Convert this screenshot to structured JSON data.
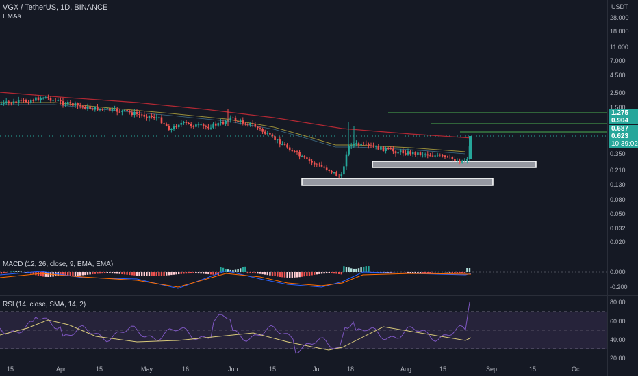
{
  "header": {
    "symbol": "VGX / TetherUS, 1D, BINANCE",
    "indicator": "EMAs",
    "currency": "USDT"
  },
  "price_axis_labels": [
    "28.000",
    "18.000",
    "11.000",
    "7.000",
    "4.500",
    "2.500",
    "1.500",
    "0.350",
    "0.210",
    "0.130",
    "0.080",
    "0.050",
    "0.032",
    "0.020"
  ],
  "price_tags": [
    {
      "value": "1.275",
      "color": "#26a69a"
    },
    {
      "value": "0.904",
      "color": "#26a69a"
    },
    {
      "value": "0.687",
      "color": "#26a69a"
    },
    {
      "value": "0.623",
      "countdown": "10:39:02",
      "color": "#26a69a"
    }
  ],
  "x_axis_labels": [
    "15",
    "Apr",
    "15",
    "May",
    "16",
    "Jun",
    "15",
    "Jul",
    "18",
    "Aug",
    "15",
    "Sep",
    "15",
    "Oct"
  ],
  "macd": {
    "title": "MACD (12, 26, close, 9, EMA, EMA)",
    "axis_labels": [
      "0.000",
      "-0.200"
    ]
  },
  "rsi": {
    "title": "RSI (14, close, SMA, 14, 2)",
    "axis_labels": [
      "80.00",
      "60.00",
      "40.00",
      "20.00"
    ]
  },
  "colors": {
    "background": "#151924",
    "up": "#26a69a",
    "down": "#ef5350",
    "ema_short": "#9a8f3a",
    "ema_long": "#b22833",
    "rsi_line": "#7e57c2",
    "rsi_band": "#2a2540",
    "level_line": "#4caf50"
  },
  "chart_data": [
    {
      "type": "candlestick",
      "title": "VGX / TetherUS, 1D, BINANCE",
      "y_scale": "log",
      "ylim": [
        0.016,
        40
      ],
      "x": [
        "Mar 15",
        "Apr 1",
        "Apr 15",
        "May 1",
        "May 16",
        "Jun 1",
        "Jun 15",
        "Jul 1",
        "Jul 18",
        "Aug 1",
        "Aug 15",
        "Aug 25"
      ],
      "close": [
        1.8,
        2.1,
        1.5,
        1.1,
        0.8,
        0.95,
        0.5,
        0.22,
        0.45,
        0.38,
        0.33,
        0.623
      ],
      "series": [
        {
          "name": "EMA short",
          "values": [
            1.75,
            1.9,
            1.7,
            1.45,
            1.15,
            1.0,
            0.75,
            0.48,
            0.44,
            0.4,
            0.38,
            0.39
          ]
        },
        {
          "name": "EMA long",
          "values": [
            2.2,
            2.1,
            1.95,
            1.75,
            1.55,
            1.35,
            1.1,
            0.85,
            0.7,
            0.6,
            0.54,
            0.52
          ]
        }
      ],
      "levels": [
        1.275,
        0.904,
        0.687
      ],
      "zones": [
        [
          0.25,
          0.27
        ],
        [
          0.145,
          0.16
        ]
      ]
    },
    {
      "type": "bar",
      "title": "MACD (12, 26, close, 9, EMA, EMA)",
      "ylim": [
        -0.25,
        0.06
      ]
    },
    {
      "type": "line",
      "title": "RSI (14, close, SMA, 14, 2)",
      "ylim": [
        15,
        85
      ],
      "bands": [
        30,
        50,
        70
      ],
      "last": 80
    }
  ]
}
